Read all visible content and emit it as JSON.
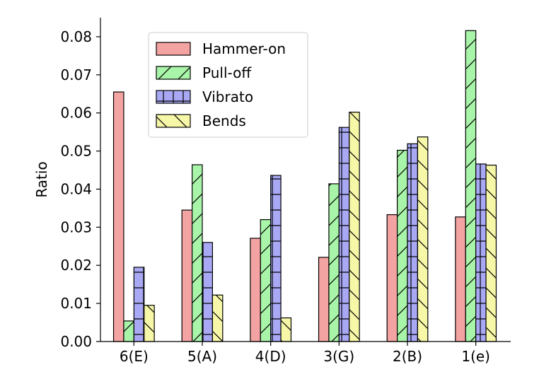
{
  "chart_data": {
    "type": "bar",
    "categories": [
      "6(E)",
      "5(A)",
      "4(D)",
      "3(G)",
      "2(B)",
      "1(e)"
    ],
    "series": [
      {
        "name": "Hammer-on",
        "values": [
          0.0655,
          0.0345,
          0.0271,
          0.0221,
          0.0333,
          0.0327
        ],
        "color": "#f4a3a3",
        "hatch": "none"
      },
      {
        "name": "Pull-off",
        "values": [
          0.0054,
          0.0464,
          0.032,
          0.0414,
          0.0502,
          0.0816
        ],
        "color": "#a8f4a8",
        "hatch": "forward-diagonal"
      },
      {
        "name": "Vibrato",
        "values": [
          0.0195,
          0.026,
          0.0436,
          0.0562,
          0.0519,
          0.0466
        ],
        "color": "#a8a8f4",
        "hatch": "cross-grid"
      },
      {
        "name": "Bends",
        "values": [
          0.0095,
          0.0122,
          0.0062,
          0.0602,
          0.0537,
          0.0463
        ],
        "color": "#f7f7a8",
        "hatch": "back-diagonal"
      }
    ],
    "title": "",
    "xlabel": "",
    "ylabel": "Ratio",
    "ylim": [
      0,
      0.085
    ],
    "yticks": [
      "0.00",
      "0.01",
      "0.02",
      "0.03",
      "0.04",
      "0.05",
      "0.06",
      "0.07",
      "0.08"
    ],
    "legend_position": "top-left",
    "grid": false
  }
}
